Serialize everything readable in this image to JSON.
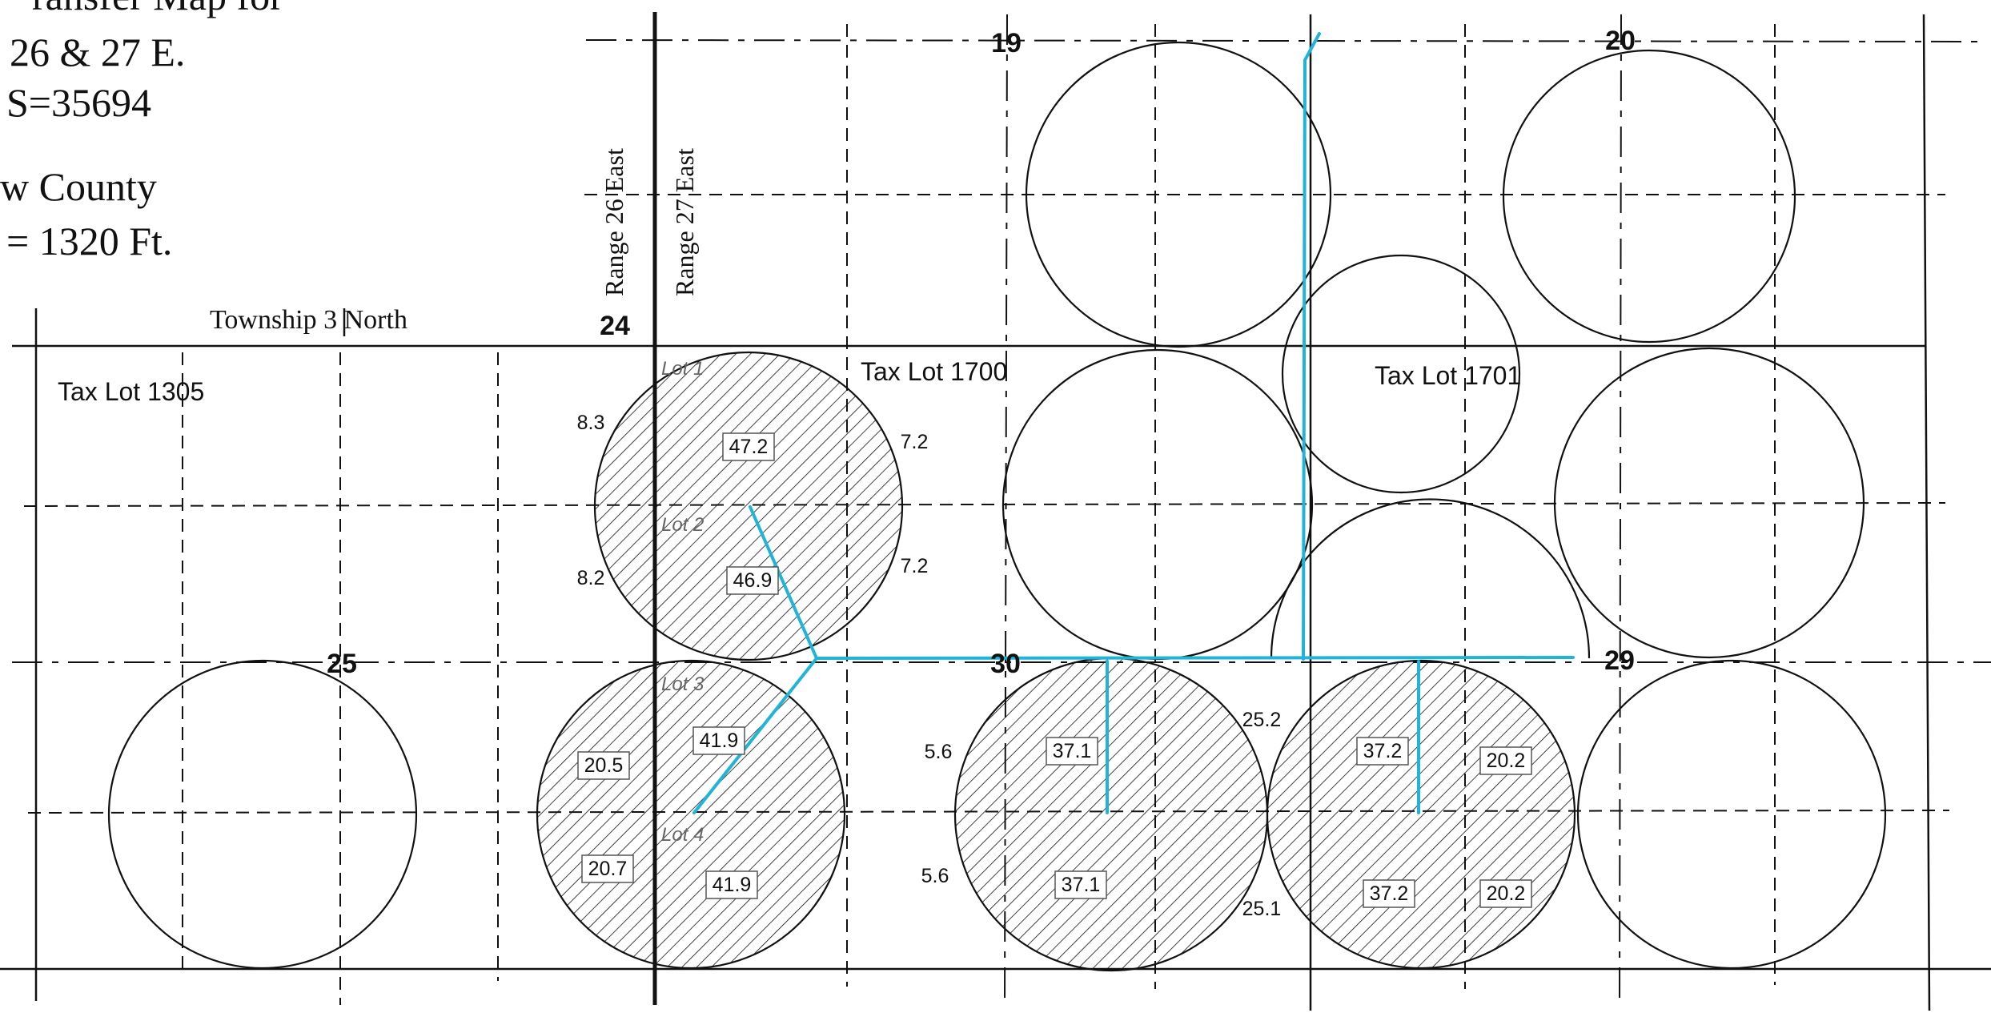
{
  "title_lines": [
    "ransfer Map for",
    "26 & 27 E.",
    "S=35694",
    "w County",
    "= 1320 Ft."
  ],
  "township_label": "Township 3 North",
  "range_labels": [
    "Range 26 East",
    "Range 27 East"
  ],
  "section_numbers": [
    "19",
    "20",
    "24",
    "25",
    "29",
    "30"
  ],
  "tax_lots": [
    "Tax Lot 1305",
    "Tax Lot 1700",
    "Tax Lot 1701"
  ],
  "lot_labels": [
    "Lot 1",
    "Lot 2",
    "Lot 3",
    "Lot 4"
  ],
  "boxed_acreages": [
    "47.2",
    "46.9",
    "41.9",
    "41.9",
    "20.5",
    "20.7",
    "37.1",
    "37.1",
    "37.2",
    "37.2",
    "20.2",
    "20.2"
  ],
  "edge_acreages": [
    "8.3",
    "8.2",
    "7.2",
    "7.2",
    "5.6",
    "5.6",
    "25.2",
    "25.1"
  ],
  "colors": {
    "pipeline": "#1fb4d8",
    "lines": "#111111",
    "hatch": "#111111"
  },
  "icons": [
    "pivot-circle",
    "hatched-pivot-circle",
    "pipeline"
  ]
}
